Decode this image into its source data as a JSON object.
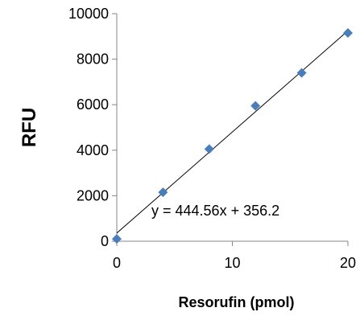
{
  "chart_data": {
    "type": "scatter",
    "title": "",
    "xlabel": "Resorufin (pmol)",
    "ylabel": "RFU",
    "xlim": [
      0,
      20
    ],
    "ylim": [
      0,
      10000
    ],
    "xticks": [
      0,
      10,
      20
    ],
    "yticks": [
      0,
      2000,
      4000,
      6000,
      8000,
      10000
    ],
    "x_tick_labels": [
      "0",
      "10",
      "20"
    ],
    "y_tick_labels": [
      "0",
      "2000",
      "4000",
      "6000",
      "8000",
      "10000"
    ],
    "grid": false,
    "legend": false,
    "series": [
      {
        "marker": "diamond",
        "color": "#4a7ebb",
        "points": [
          {
            "x": 0,
            "y": 100
          },
          {
            "x": 4,
            "y": 2150
          },
          {
            "x": 8,
            "y": 4050
          },
          {
            "x": 12,
            "y": 5950
          },
          {
            "x": 16,
            "y": 7400
          },
          {
            "x": 20,
            "y": 9150
          }
        ]
      }
    ],
    "trendline": {
      "type": "linear",
      "slope": 444.56,
      "intercept": 356.2,
      "color": "#000000",
      "equation_label": "y = 444.56x + 356.2"
    }
  }
}
